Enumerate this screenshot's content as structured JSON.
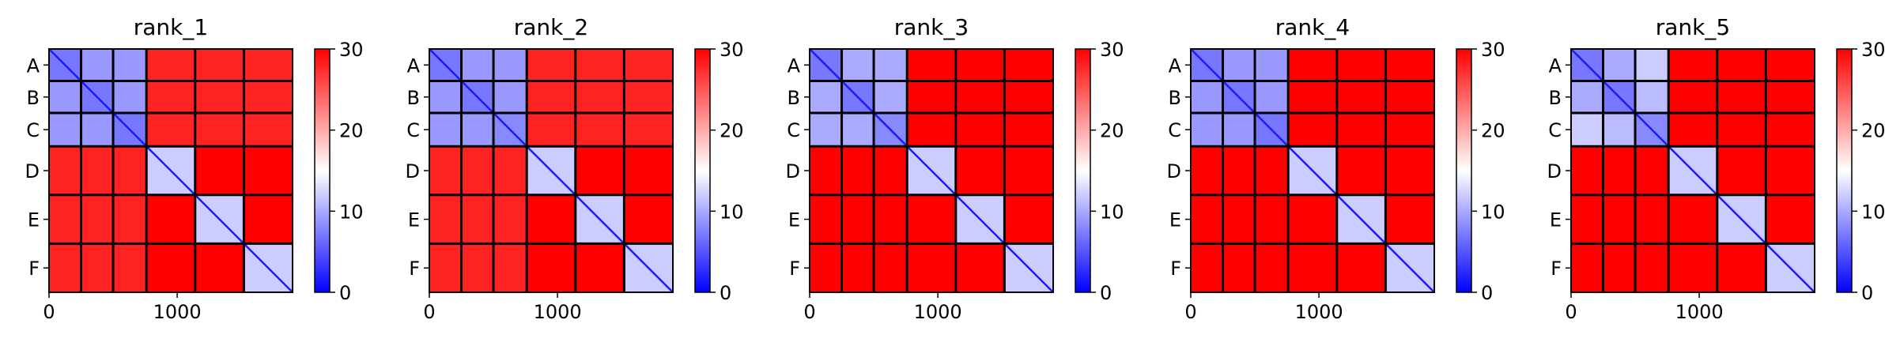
{
  "chart_data": [
    {
      "type": "heatmap",
      "title": "rank_1",
      "row_labels": [
        "A",
        "B",
        "C",
        "D",
        "E",
        "F"
      ],
      "x_ticks": [
        0,
        1000
      ],
      "xlim": [
        0,
        1900
      ],
      "colorbar": {
        "min": 0,
        "max": 30,
        "ticks": [
          0,
          10,
          20,
          30
        ],
        "colormap": [
          "#0000ff",
          "#ffffff",
          "#ff0000"
        ]
      },
      "block_edges": [
        0,
        250,
        500,
        760,
        1140,
        1520,
        1900
      ],
      "blocks": [
        [
          7,
          9,
          9,
          28,
          28,
          28
        ],
        [
          9,
          7,
          9,
          28,
          28,
          28
        ],
        [
          9,
          9,
          7,
          28,
          28,
          28
        ],
        [
          28,
          28,
          28,
          12,
          30,
          30
        ],
        [
          28,
          28,
          28,
          30,
          12,
          30
        ],
        [
          28,
          28,
          28,
          30,
          30,
          12
        ]
      ]
    },
    {
      "type": "heatmap",
      "title": "rank_2",
      "row_labels": [
        "A",
        "B",
        "C",
        "D",
        "E",
        "F"
      ],
      "x_ticks": [
        0,
        1000
      ],
      "xlim": [
        0,
        1900
      ],
      "colorbar": {
        "min": 0,
        "max": 30,
        "ticks": [
          0,
          10,
          20,
          30
        ],
        "colormap": [
          "#0000ff",
          "#ffffff",
          "#ff0000"
        ]
      },
      "block_edges": [
        0,
        250,
        500,
        760,
        1140,
        1520,
        1900
      ],
      "blocks": [
        [
          7,
          9,
          9,
          28,
          28,
          28
        ],
        [
          9,
          7,
          9,
          28,
          28,
          28
        ],
        [
          9,
          9,
          8,
          28,
          28,
          28
        ],
        [
          28,
          28,
          28,
          12,
          30,
          30
        ],
        [
          28,
          28,
          28,
          30,
          12,
          30
        ],
        [
          28,
          28,
          28,
          30,
          30,
          12
        ]
      ]
    },
    {
      "type": "heatmap",
      "title": "rank_3",
      "row_labels": [
        "A",
        "B",
        "C",
        "D",
        "E",
        "F"
      ],
      "x_ticks": [
        0,
        1000
      ],
      "xlim": [
        0,
        1900
      ],
      "colorbar": {
        "min": 0,
        "max": 30,
        "ticks": [
          0,
          10,
          20,
          30
        ],
        "colormap": [
          "#0000ff",
          "#ffffff",
          "#ff0000"
        ]
      },
      "block_edges": [
        0,
        250,
        500,
        760,
        1140,
        1520,
        1900
      ],
      "blocks": [
        [
          7,
          10,
          10,
          30,
          30,
          30
        ],
        [
          10,
          7,
          10,
          30,
          30,
          30
        ],
        [
          10,
          10,
          8,
          30,
          30,
          30
        ],
        [
          30,
          30,
          30,
          12,
          30,
          30
        ],
        [
          30,
          30,
          30,
          30,
          12,
          30
        ],
        [
          30,
          30,
          30,
          30,
          30,
          12
        ]
      ]
    },
    {
      "type": "heatmap",
      "title": "rank_4",
      "row_labels": [
        "A",
        "B",
        "C",
        "D",
        "E",
        "F"
      ],
      "x_ticks": [
        0,
        1000
      ],
      "xlim": [
        0,
        1900
      ],
      "colorbar": {
        "min": 0,
        "max": 30,
        "ticks": [
          0,
          10,
          20,
          30
        ],
        "colormap": [
          "#0000ff",
          "#ffffff",
          "#ff0000"
        ]
      },
      "block_edges": [
        0,
        250,
        500,
        760,
        1140,
        1520,
        1900
      ],
      "blocks": [
        [
          7,
          9,
          9,
          30,
          30,
          30
        ],
        [
          9,
          7,
          9,
          30,
          30,
          30
        ],
        [
          9,
          9,
          7,
          30,
          30,
          30
        ],
        [
          30,
          30,
          30,
          12,
          30,
          30
        ],
        [
          30,
          30,
          30,
          30,
          12,
          30
        ],
        [
          30,
          30,
          30,
          30,
          30,
          12
        ]
      ]
    },
    {
      "type": "heatmap",
      "title": "rank_5",
      "row_labels": [
        "A",
        "B",
        "C",
        "D",
        "E",
        "F"
      ],
      "x_ticks": [
        0,
        1000
      ],
      "xlim": [
        0,
        1900
      ],
      "colorbar": {
        "min": 0,
        "max": 30,
        "ticks": [
          0,
          10,
          20,
          30
        ],
        "colormap": [
          "#0000ff",
          "#ffffff",
          "#ff0000"
        ]
      },
      "block_edges": [
        0,
        250,
        500,
        760,
        1140,
        1520,
        1900
      ],
      "blocks": [
        [
          7,
          10,
          12,
          30,
          30,
          30
        ],
        [
          10,
          7,
          11,
          30,
          30,
          30
        ],
        [
          12,
          11,
          8,
          30,
          30,
          30
        ],
        [
          30,
          30,
          30,
          12,
          30,
          30
        ],
        [
          30,
          30,
          30,
          30,
          12,
          30
        ],
        [
          30,
          30,
          30,
          30,
          30,
          12
        ]
      ]
    }
  ]
}
